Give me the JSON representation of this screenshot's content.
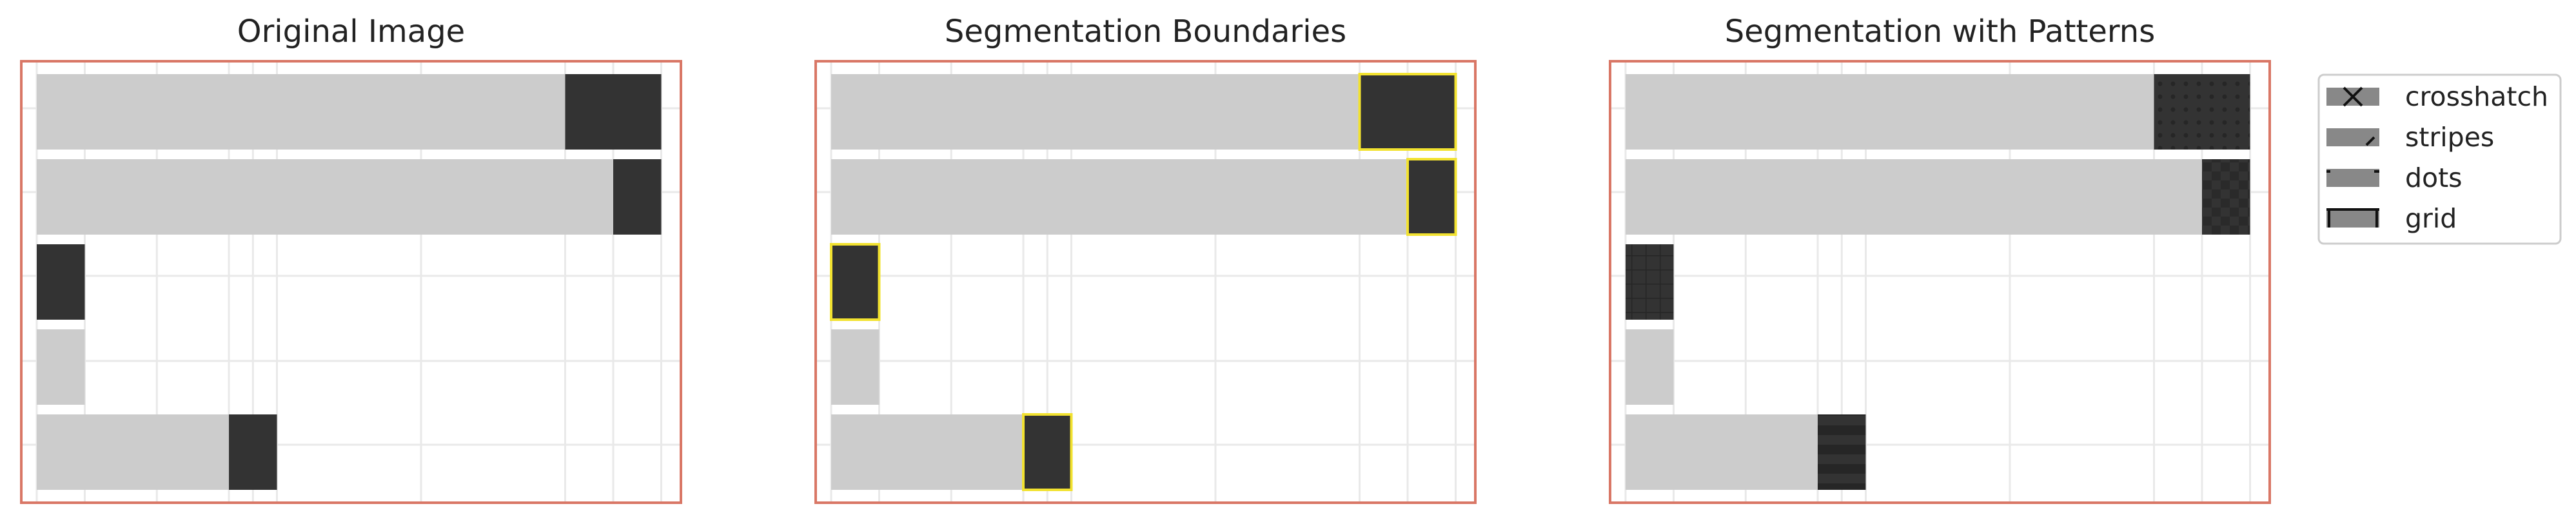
{
  "chart_data": [
    {
      "type": "bar",
      "orientation": "horizontal",
      "title": "Original Image",
      "stacked": true,
      "rows": 5,
      "series": [
        {
          "values": [
            11,
            12,
            0,
            0,
            4
          ],
          "color": "#cccccc"
        },
        {
          "values": [
            2,
            1,
            1,
            1,
            1
          ],
          "color": "#333333"
        }
      ],
      "xlim": [
        0,
        13.5
      ],
      "grid": true,
      "frame_color": "#d97766"
    },
    {
      "type": "bar",
      "orientation": "horizontal",
      "title": "Segmentation Boundaries",
      "stacked": true,
      "rows": 5,
      "series": [
        {
          "values": [
            11,
            12,
            0,
            0,
            4
          ],
          "color": "#cccccc"
        },
        {
          "values": [
            2,
            1,
            1,
            1,
            1
          ],
          "color": "#333333",
          "outline": "#f2e230"
        }
      ],
      "xlim": [
        0,
        13.5
      ],
      "grid": true,
      "frame_color": "#d97766"
    },
    {
      "type": "bar",
      "orientation": "horizontal",
      "title": "Segmentation with Patterns",
      "stacked": true,
      "rows": 5,
      "series": [
        {
          "values": [
            11,
            12,
            0,
            0,
            4
          ],
          "color": "#cccccc"
        },
        {
          "values": [
            2,
            1,
            1,
            1,
            1
          ],
          "color": "#333333",
          "patterns": [
            "dots",
            "checker",
            "grid",
            "",
            "stripes"
          ]
        }
      ],
      "xlim": [
        0,
        13.5
      ],
      "grid": true,
      "frame_color": "#d97766"
    }
  ],
  "legend": {
    "placement": "right",
    "items": [
      {
        "label": "crosshatch",
        "pattern": "crosshatch"
      },
      {
        "label": "stripes",
        "pattern": "stripes"
      },
      {
        "label": "dots",
        "pattern": "dots"
      },
      {
        "label": "grid",
        "pattern": "grid"
      }
    ]
  },
  "colors": {
    "light": "#cccccc",
    "dark": "#333333",
    "outline": "#f2e230",
    "frame": "#d97766",
    "grid": "#e9e9e9",
    "legend_swatch": "#888888"
  }
}
